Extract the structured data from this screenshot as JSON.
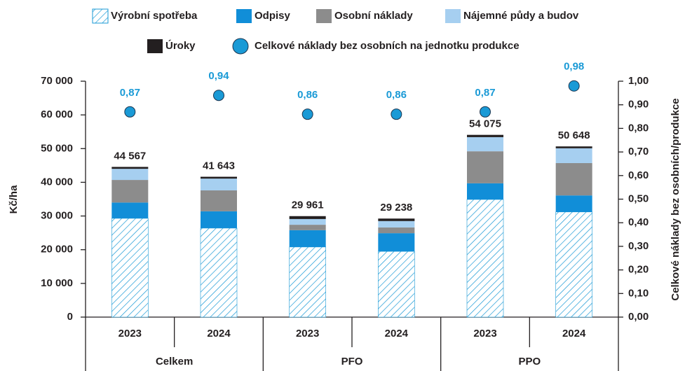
{
  "chart_data": {
    "type": "bar",
    "stacked": true,
    "categories": [
      "2023",
      "2024",
      "2023",
      "2024",
      "2023",
      "2024"
    ],
    "groups": [
      "Celkem",
      "PFO",
      "PPO"
    ],
    "series": [
      {
        "name": "Výrobní spotřeba",
        "color": "#1a9ad6",
        "hatch": true,
        "values": [
          29300,
          26400,
          20800,
          19500,
          34900,
          31200
        ]
      },
      {
        "name": "Odpisy",
        "color": "#118ed8",
        "values": [
          4700,
          5000,
          5000,
          5400,
          4800,
          4900
        ]
      },
      {
        "name": "Osobní náklady",
        "color": "#8c8c8c",
        "values": [
          6700,
          6200,
          1600,
          1700,
          9500,
          9600
        ]
      },
      {
        "name": "Nájemné půdy a budov",
        "color": "#a6cff0",
        "values": [
          3300,
          3500,
          1700,
          1900,
          4200,
          4400
        ]
      },
      {
        "name": "Úroky",
        "color": "#231f20",
        "values": [
          567,
          543,
          861,
          738,
          675,
          548
        ]
      },
      {
        "name": "Celkové náklady bez osobních na jednotku produkce",
        "type": "scatter",
        "axis": "y2",
        "color": "#1a9ad6",
        "values": [
          0.87,
          0.94,
          0.86,
          0.86,
          0.87,
          0.98
        ],
        "value_labels": [
          "0,87",
          "0,94",
          "0,86",
          "0,86",
          "0,87",
          "0,98"
        ]
      }
    ],
    "totals": [
      44567,
      41643,
      29961,
      29238,
      54075,
      50648
    ],
    "total_labels": [
      "44 567",
      "41 643",
      "29 961",
      "29 238",
      "54 075",
      "50 648"
    ],
    "ylabel": "Kč/ha",
    "y2label": "Celkové náklady bez osobních/produkce",
    "ylim": [
      0,
      70000
    ],
    "yticks": [
      0,
      {
        "value": 10000,
        "label": "10 000"
      },
      {
        "value": 20000,
        "label": "20 000"
      },
      {
        "value": 30000,
        "label": "30 000"
      },
      {
        "value": 40000,
        "label": "40 000"
      },
      {
        "value": 50000,
        "label": "50 000"
      },
      {
        "value": 60000,
        "label": "60 000"
      },
      {
        "value": 70000,
        "label": "70 000"
      }
    ],
    "y2lim": [
      0,
      1
    ],
    "y2ticks": [
      {
        "value": 0,
        "label": "0,00"
      },
      {
        "value": 0.1,
        "label": "0,10"
      },
      {
        "value": 0.2,
        "label": "0,20"
      },
      {
        "value": 0.3,
        "label": "0,30"
      },
      {
        "value": 0.4,
        "label": "0,40"
      },
      {
        "value": 0.5,
        "label": "0,50"
      },
      {
        "value": 0.6,
        "label": "0,60"
      },
      {
        "value": 0.7,
        "label": "0,70"
      },
      {
        "value": 0.8,
        "label": "0,80"
      },
      {
        "value": 0.9,
        "label": "0,90"
      },
      {
        "value": 1,
        "label": "1,00"
      }
    ],
    "legend": "top"
  }
}
